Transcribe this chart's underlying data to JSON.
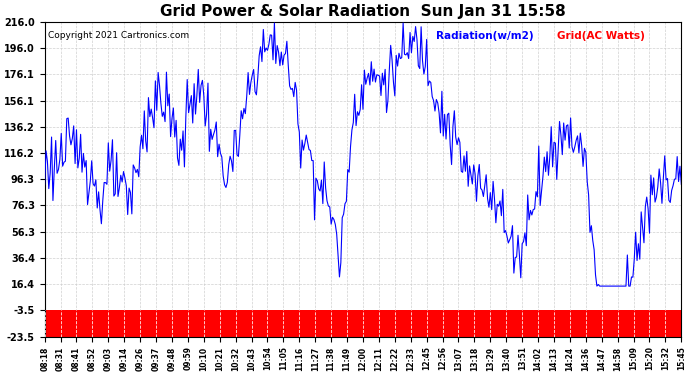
{
  "title": "Grid Power & Solar Radiation  Sun Jan 31 15:58",
  "copyright": "Copyright 2021 Cartronics.com",
  "legend_radiation": "Radiation(w/m2)",
  "legend_grid": "Grid(AC Watts)",
  "legend_radiation_color": "#0000ff",
  "legend_grid_color": "#ff0000",
  "y_ticks": [
    216.0,
    196.0,
    176.1,
    156.1,
    136.2,
    116.2,
    96.3,
    76.3,
    56.3,
    36.4,
    16.4,
    -3.5,
    -23.5
  ],
  "ylim": [
    -23.5,
    216.0
  ],
  "background_color": "#ffffff",
  "plot_bg_color": "#ffffff",
  "grid_color": "#cccccc",
  "line_color": "#0000ff",
  "bar_color": "#ff0000",
  "x_labels": [
    "08:18",
    "08:31",
    "08:41",
    "08:52",
    "09:03",
    "09:14",
    "09:26",
    "09:37",
    "09:48",
    "09:59",
    "10:10",
    "10:21",
    "10:32",
    "10:43",
    "10:54",
    "11:05",
    "11:16",
    "11:27",
    "11:38",
    "11:49",
    "12:00",
    "12:11",
    "12:22",
    "12:33",
    "12:45",
    "12:56",
    "13:07",
    "13:18",
    "13:29",
    "13:40",
    "13:51",
    "14:02",
    "14:13",
    "14:24",
    "14:36",
    "14:47",
    "14:58",
    "15:09",
    "15:20",
    "15:32",
    "15:45"
  ]
}
